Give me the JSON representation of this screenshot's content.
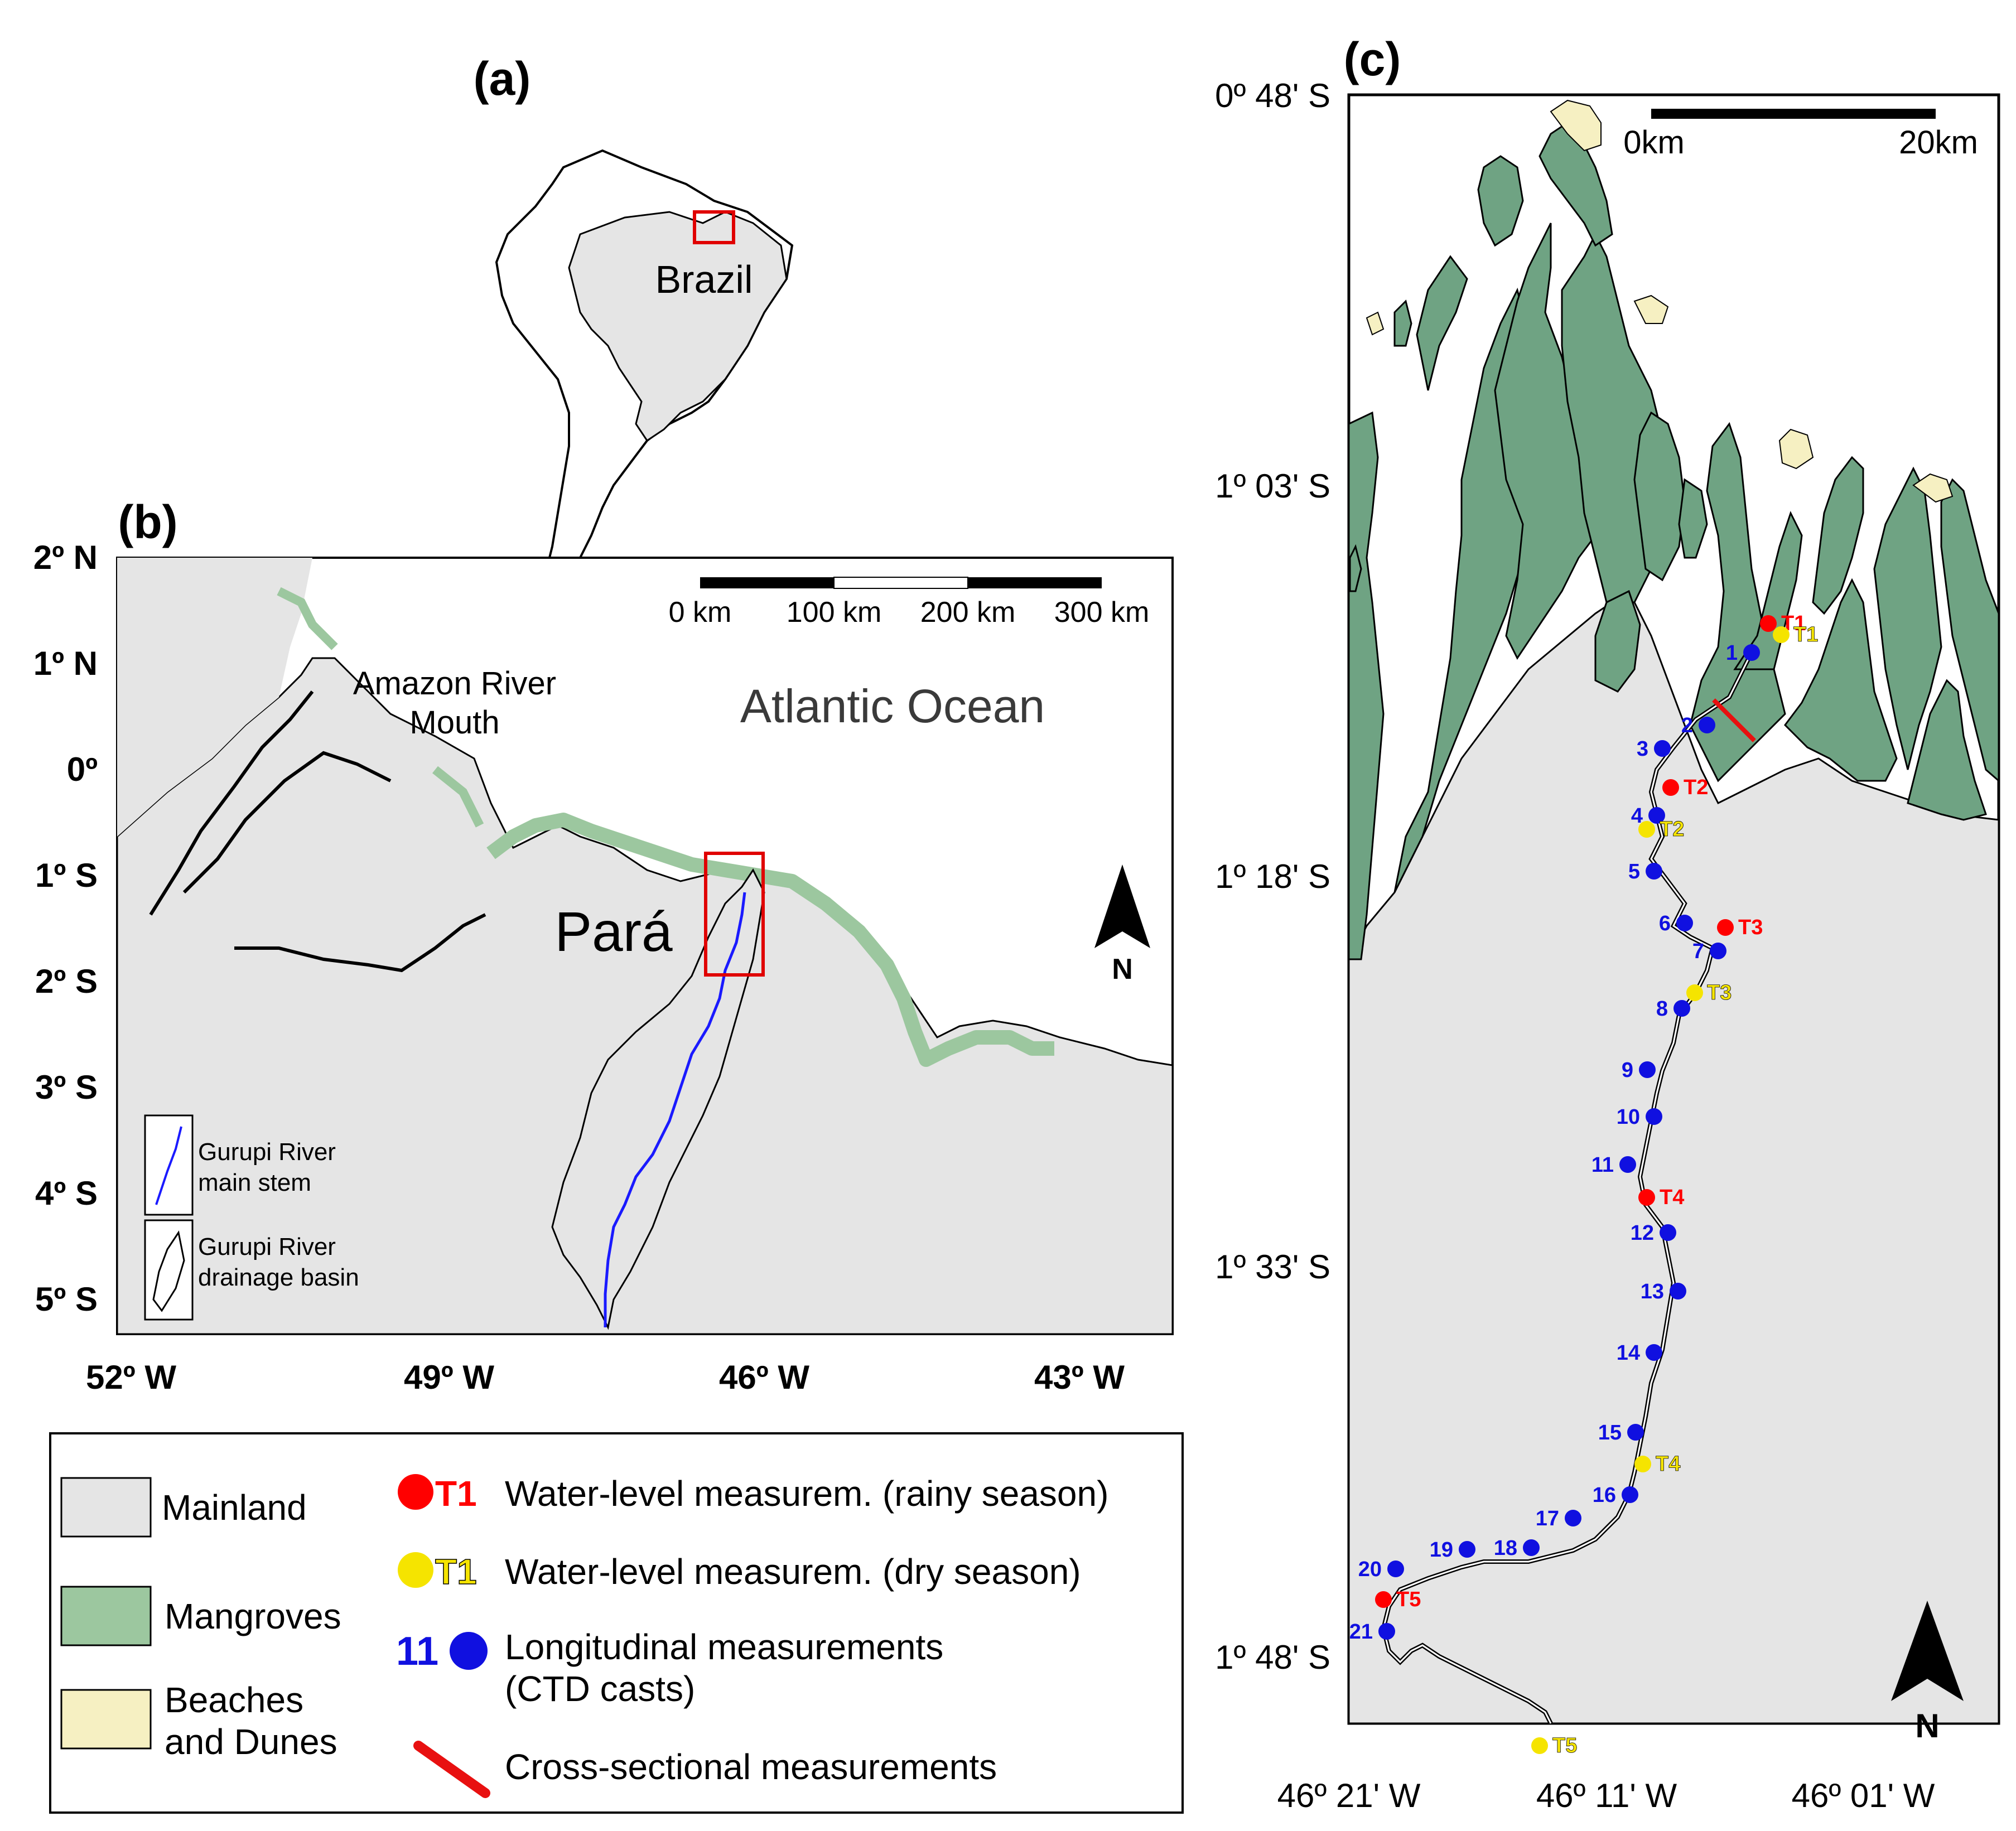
{
  "panels": {
    "a": {
      "label": "(a)",
      "country": "Brazil"
    },
    "b": {
      "label": "(b)",
      "lat_ticks": [
        "2º N",
        "1º N",
        "0º",
        "1º S",
        "2º S",
        "3º S",
        "4º S",
        "5º S"
      ],
      "lon_ticks": [
        "52º W",
        "49º W",
        "46º W",
        "43º W"
      ],
      "scale_labels": [
        "0 km",
        "100 km",
        "200 km",
        "300 km"
      ],
      "amazon_label_line1": "Amazon River",
      "amazon_label_line2": "Mouth",
      "ocean_label": "Atlantic Ocean",
      "state_label": "Pará",
      "north_label": "N",
      "inset_main_stem_line1": "Gurupi River",
      "inset_main_stem_line2": "main stem",
      "inset_basin_line1": "Gurupi River",
      "inset_basin_line2": "drainage basin"
    },
    "c": {
      "label": "(c)",
      "lat_ticks": [
        "0º 48' S",
        "1º 03' S",
        "1º 18' S",
        "1º 33' S",
        "1º 48' S"
      ],
      "lon_ticks": [
        "46º 21' W",
        "46º 11' W",
        "46º 01' W"
      ],
      "scale_labels": [
        "0km",
        "20km"
      ],
      "north_label": "N",
      "ctd_stations": [
        "1",
        "2",
        "3",
        "4",
        "5",
        "6",
        "7",
        "8",
        "9",
        "10",
        "11",
        "12",
        "13",
        "14",
        "15",
        "16",
        "17",
        "18",
        "19",
        "20",
        "21"
      ],
      "rainy_stations": [
        "T1",
        "T2",
        "T3",
        "T4",
        "T5"
      ],
      "dry_stations": [
        "T1",
        "T2",
        "T3",
        "T4",
        "T5"
      ]
    }
  },
  "legend": {
    "mainland": "Mainland",
    "mangroves": "Mangroves",
    "beaches_line1": "Beaches",
    "beaches_line2": "and Dunes",
    "rainy_symbol": "T1",
    "rainy_text": "Water-level measurem. (rainy season)",
    "dry_symbol": "T1",
    "dry_text": "Water-level measurem. (dry season)",
    "ctd_symbol": "11",
    "ctd_text_line1": "Longitudinal measurements",
    "ctd_text_line2": "(CTD casts)",
    "cross_text": "Cross-sectional measurements"
  },
  "colors": {
    "mainland": "#e5e5e5",
    "mangroves": "#6fa383",
    "mangroves_light": "#9cc79f",
    "beaches": "#f6f0c2",
    "rainy": "#ff0000",
    "dry": "#f5e400",
    "ctd": "#1010e0",
    "river_main_stem": "#1a1aff",
    "cross_section": "#e81010"
  }
}
